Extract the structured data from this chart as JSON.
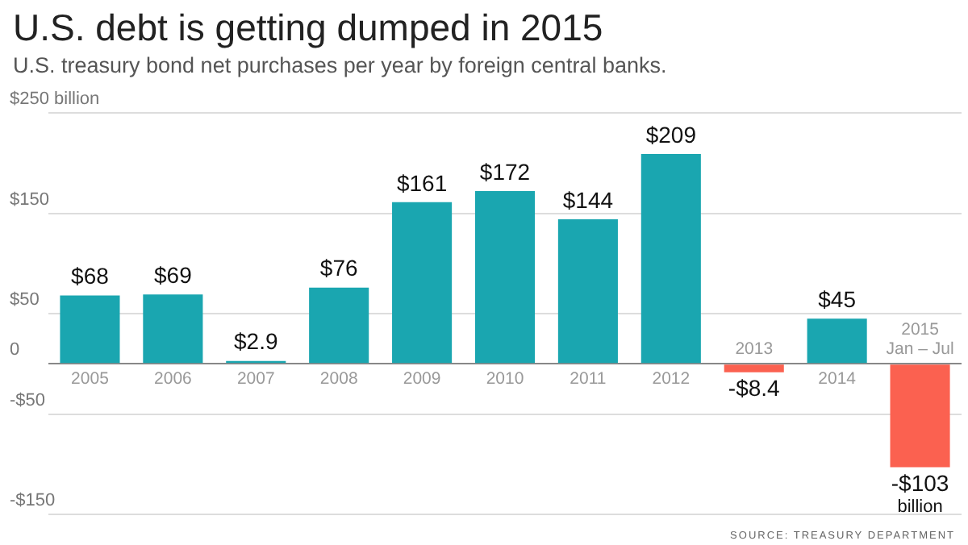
{
  "chart_data": {
    "type": "bar",
    "title": "U.S. debt is getting dumped in 2015",
    "subtitle": "U.S. treasury bond net purchases per year by foreign central banks.",
    "categories": [
      "2005",
      "2006",
      "2007",
      "2008",
      "2009",
      "2010",
      "2011",
      "2012",
      "2013",
      "2014",
      "2015 Jan – Jul"
    ],
    "values": [
      68,
      69,
      2.9,
      76,
      161,
      172,
      144,
      209,
      -8.4,
      45,
      -103
    ],
    "colors": [
      "#1aa6b0",
      "#1aa6b0",
      "#1aa6b0",
      "#1aa6b0",
      "#1aa6b0",
      "#1aa6b0",
      "#1aa6b0",
      "#1aa6b0",
      "#fb6150",
      "#1aa6b0",
      "#fb6150"
    ],
    "value_labels": [
      "$68",
      "$69",
      "$2.9",
      "$76",
      "$161",
      "$172",
      "$144",
      "$209",
      "-$8.4",
      "$45",
      "-$103 billion"
    ],
    "ylim": [
      -150,
      250
    ],
    "yticks": [
      {
        "value": 250,
        "label": "$250 billion"
      },
      {
        "value": 150,
        "label": "$150"
      },
      {
        "value": 50,
        "label": "$50"
      },
      0,
      {
        "value": -50,
        "label": "-$50"
      },
      {
        "value": -150,
        "label": "-$150"
      }
    ],
    "grid": "y",
    "legend": false,
    "annotations": [
      "SOURCE: TREASURY DEPARTMENT"
    ]
  }
}
